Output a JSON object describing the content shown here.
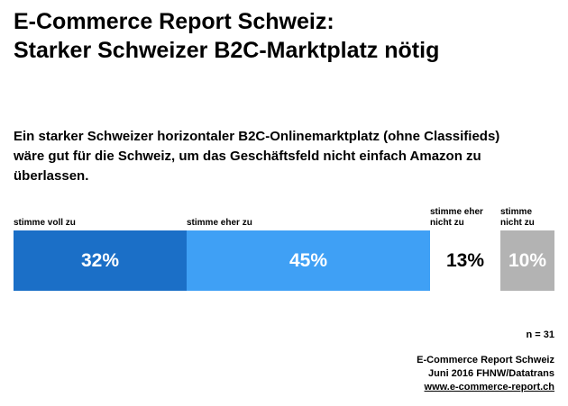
{
  "title": {
    "line1": "E-Commerce Report Schweiz:",
    "line2": "Starker Schweizer B2C-Marktplatz nötig"
  },
  "statement": {
    "line1": "Ein starker Schweizer horizontaler B2C-Onlinemarktplatz (ohne Classifieds)",
    "line2": "wäre gut für die Schweiz, um das Geschäftsfeld nicht einfach Amazon zu",
    "line3": "überlassen."
  },
  "chart_data": {
    "type": "bar",
    "orientation": "horizontal-stacked",
    "categories": [
      "stimme voll zu",
      "stimme eher zu",
      "stimme eher nicht zu",
      "stimme nicht zu"
    ],
    "values": [
      32,
      45,
      13,
      10
    ],
    "unit": "%",
    "colors": [
      "#1b6fc7",
      "#3fa0f5",
      "#ffffff",
      "#b3b3b3"
    ],
    "text_colors": [
      "#ffffff",
      "#ffffff",
      "#000000",
      "#ffffff"
    ],
    "xlim": [
      0,
      100
    ],
    "legend_position": "above-segments",
    "n_label": "n = 31"
  },
  "footer": {
    "line1": "E-Commerce Report Schweiz",
    "line2": "Juni 2016 FHNW/Datatrans",
    "link": "www.e-commerce-report.ch"
  }
}
